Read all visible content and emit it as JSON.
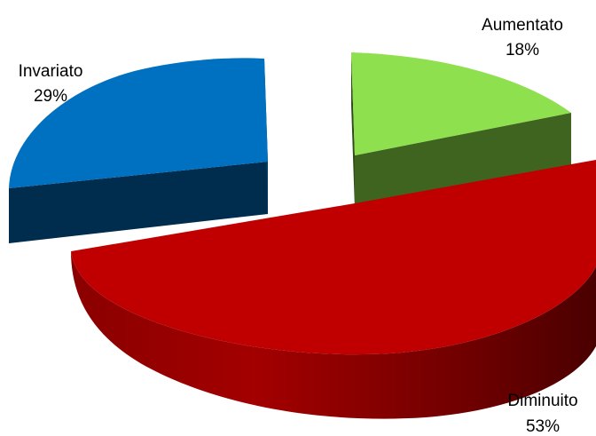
{
  "chart_data": {
    "type": "pie",
    "style": "3d-exploded",
    "series": [
      {
        "name": "",
        "slices": [
          {
            "label": "Aumentato",
            "value": 18,
            "value_label": "18%",
            "color_top": "#8ee04e",
            "color_side": "#3f6420"
          },
          {
            "label": "Diminuito",
            "value": 53,
            "value_label": "53%",
            "color_top": "#c00000",
            "color_side": "#6b0000"
          },
          {
            "label": "Invariato",
            "value": 29,
            "value_label": "29%",
            "color_top": "#0070c0",
            "color_side": "#002c4e"
          }
        ]
      }
    ],
    "legend": "none",
    "grid": false
  }
}
